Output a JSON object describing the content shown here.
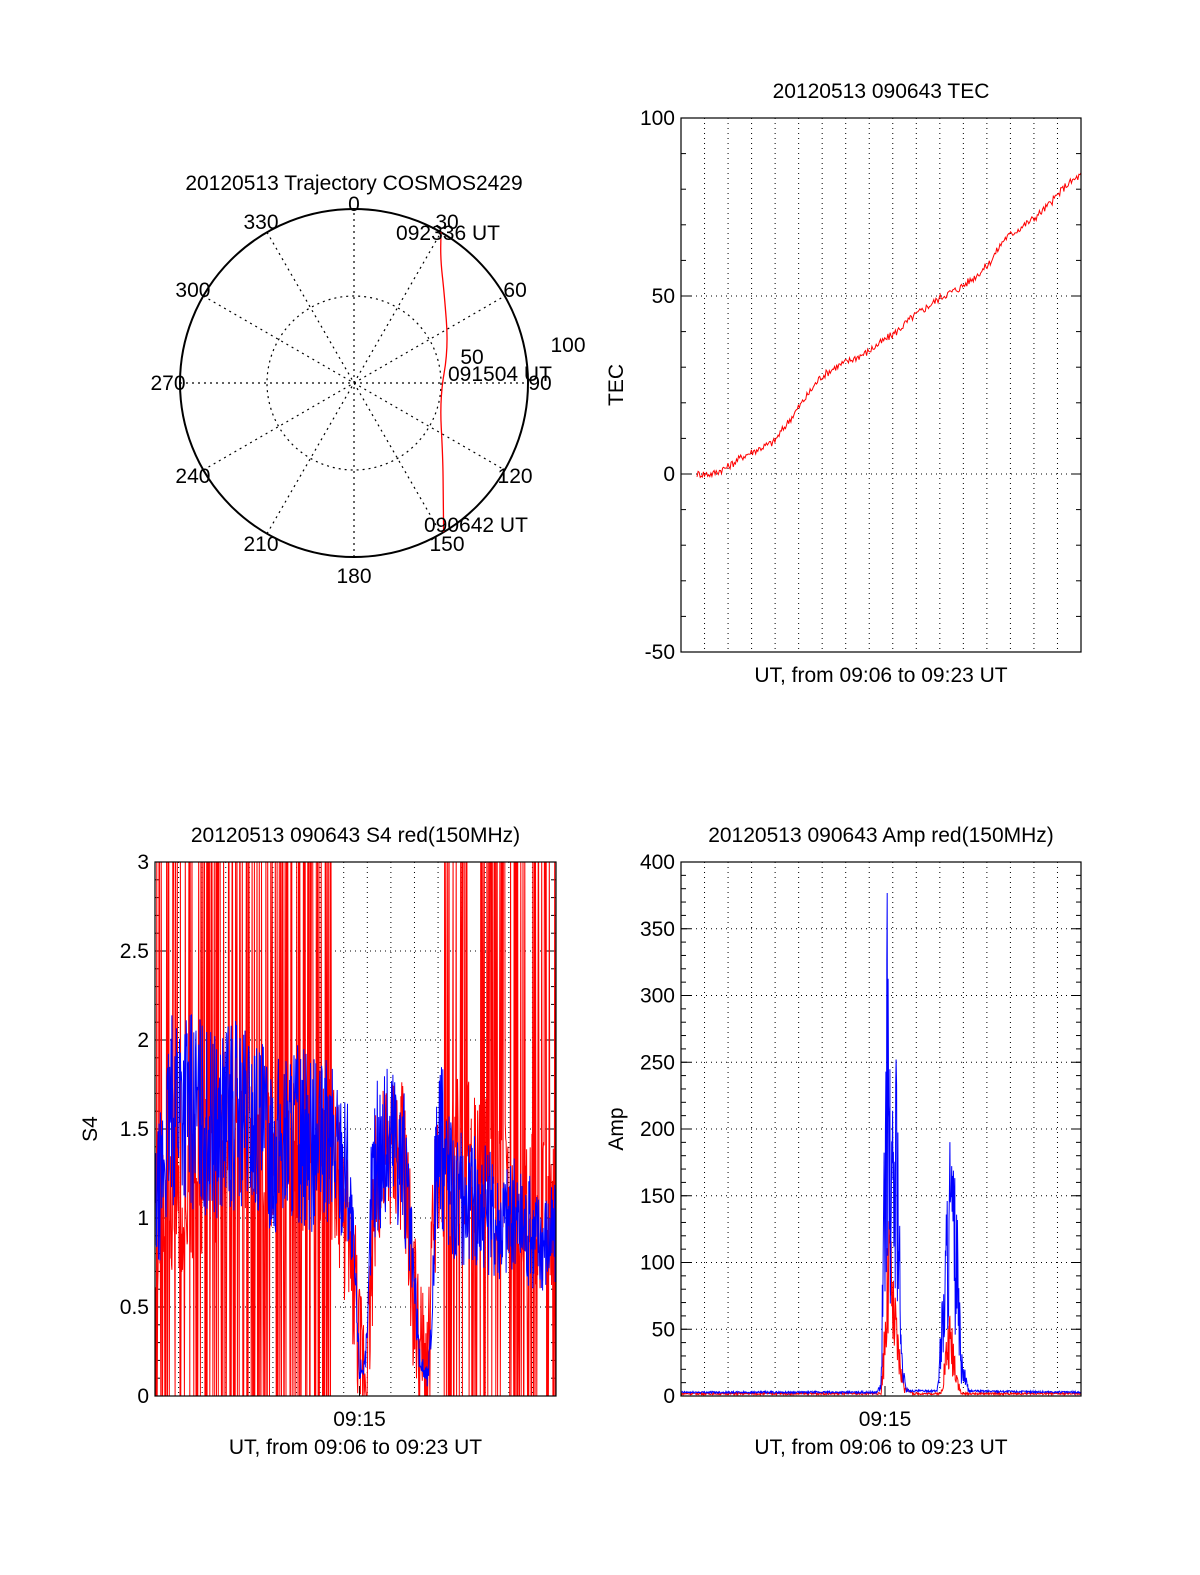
{
  "chart_data": [
    {
      "id": "trajectory",
      "type": "polar",
      "title": "20120513 Trajectory COSMOS2429",
      "angle_labels": [
        "0",
        "30",
        "60",
        "90",
        "120",
        "150",
        "180",
        "210",
        "240",
        "270",
        "300",
        "330"
      ],
      "radius_labels": [
        "50",
        "100"
      ],
      "rlim": [
        0,
        100
      ],
      "rings": [
        50,
        100
      ],
      "trajectory": {
        "color": "#ff0000",
        "points": [
          {
            "az": 149,
            "el": 0
          },
          {
            "az": 142,
            "el": 15
          },
          {
            "az": 130,
            "el": 30
          },
          {
            "az": 100,
            "el": 45
          },
          {
            "az": 70,
            "el": 38
          },
          {
            "az": 45,
            "el": 24
          },
          {
            "az": 35,
            "el": 12
          },
          {
            "az": 30,
            "el": 0
          }
        ]
      },
      "annotations": [
        {
          "text": "092336 UT",
          "az": 30,
          "el": 0
        },
        {
          "text": "091504 UT",
          "az": 100,
          "el": 45
        },
        {
          "text": "090642 UT",
          "az": 149,
          "el": 0
        }
      ]
    },
    {
      "id": "tec",
      "type": "line",
      "title": "20120513 090643 TEC",
      "xlabel": "UT, from 09:06 to 09:23 UT",
      "ylabel": "TEC",
      "ylim": [
        -50,
        100
      ],
      "yticks": [
        "-50",
        "0",
        "50",
        "100"
      ],
      "grid": true,
      "series": [
        {
          "color": "#ff0000",
          "x_fraction": [
            0.04,
            0.08,
            0.12,
            0.16,
            0.2,
            0.24,
            0.28,
            0.32,
            0.36,
            0.4,
            0.44,
            0.48,
            0.52,
            0.56,
            0.6,
            0.64,
            0.68,
            0.72,
            0.76,
            0.8,
            0.84,
            0.88,
            0.92,
            0.96,
            1.0
          ],
          "values": [
            0,
            2,
            5,
            7,
            9,
            15,
            21,
            27,
            30,
            32,
            34,
            37,
            40,
            44,
            47,
            50,
            52,
            55,
            59,
            66,
            69,
            72,
            76,
            81,
            84
          ]
        }
      ]
    },
    {
      "id": "s4",
      "type": "line",
      "title": "20120513 090643 S4 red(150MHz)",
      "xlabel": "UT, from 09:06 to 09:23 UT",
      "ylabel": "S4",
      "ylim": [
        0,
        3
      ],
      "yticks": [
        "0",
        "0.5",
        "1",
        "1.5",
        "2",
        "2.5",
        "3"
      ],
      "xticks": [
        {
          "label": "09:15",
          "fraction": 0.51
        }
      ],
      "grid": true,
      "series": [
        {
          "color": "#ff0000",
          "x_fraction": [
            0.0,
            0.1,
            0.2,
            0.3,
            0.4,
            0.45,
            0.5,
            0.51,
            0.53,
            0.55,
            0.6,
            0.62,
            0.64,
            0.66,
            0.68,
            0.7,
            0.75,
            0.8,
            0.9,
            1.0
          ],
          "values": [
            1.0,
            1.2,
            1.3,
            1.3,
            1.4,
            1.3,
            0.6,
            0.2,
            0.2,
            1.2,
            1.4,
            1.3,
            0.7,
            0.2,
            0.1,
            1.2,
            1.4,
            1.3,
            1.1,
            1.0
          ]
        },
        {
          "color": "#0000ff",
          "x_fraction": [
            0.0,
            0.05,
            0.1,
            0.15,
            0.2,
            0.25,
            0.3,
            0.35,
            0.4,
            0.45,
            0.48,
            0.5,
            0.51,
            0.52,
            0.53,
            0.54,
            0.56,
            0.58,
            0.6,
            0.62,
            0.64,
            0.66,
            0.67,
            0.68,
            0.69,
            0.7,
            0.72,
            0.75,
            0.8,
            0.85,
            0.9,
            0.95,
            1.0
          ],
          "values": [
            1.0,
            1.7,
            1.6,
            1.5,
            1.6,
            1.5,
            1.4,
            1.5,
            1.4,
            1.4,
            1.3,
            0.6,
            0.15,
            0.17,
            0.3,
            1.2,
            1.4,
            1.4,
            1.5,
            1.3,
            0.8,
            0.2,
            0.15,
            0.1,
            0.4,
            1.3,
            1.4,
            1.1,
            1.1,
            1.0,
            1.0,
            0.9,
            0.9
          ]
        }
      ]
    },
    {
      "id": "amp",
      "type": "line",
      "title": "20120513 090643 Amp red(150MHz)",
      "xlabel": "UT, from 09:06 to 09:23 UT",
      "ylabel": "Amp",
      "ylim": [
        0,
        400
      ],
      "yticks": [
        "0",
        "50",
        "100",
        "150",
        "200",
        "250",
        "300",
        "350",
        "400"
      ],
      "xticks": [
        {
          "label": "09:15",
          "fraction": 0.51
        }
      ],
      "grid": true,
      "series": [
        {
          "color": "#ff0000",
          "x_fraction": [
            0.0,
            0.5,
            0.51,
            0.52,
            0.53,
            0.54,
            0.55,
            0.56,
            0.58,
            0.65,
            0.66,
            0.67,
            0.68,
            0.69,
            0.7,
            1.0
          ],
          "values": [
            1,
            1,
            60,
            120,
            80,
            50,
            25,
            5,
            1,
            1,
            30,
            55,
            45,
            20,
            1,
            1
          ]
        },
        {
          "color": "#0000ff",
          "x_fraction": [
            0.0,
            0.49,
            0.5,
            0.51,
            0.515,
            0.52,
            0.525,
            0.53,
            0.54,
            0.545,
            0.55,
            0.56,
            0.57,
            0.64,
            0.66,
            0.67,
            0.68,
            0.69,
            0.7,
            0.72,
            1.0
          ],
          "values": [
            2,
            2,
            10,
            200,
            340,
            250,
            150,
            200,
            240,
            150,
            40,
            10,
            3,
            3,
            100,
            180,
            150,
            120,
            30,
            3,
            2
          ]
        }
      ]
    }
  ]
}
